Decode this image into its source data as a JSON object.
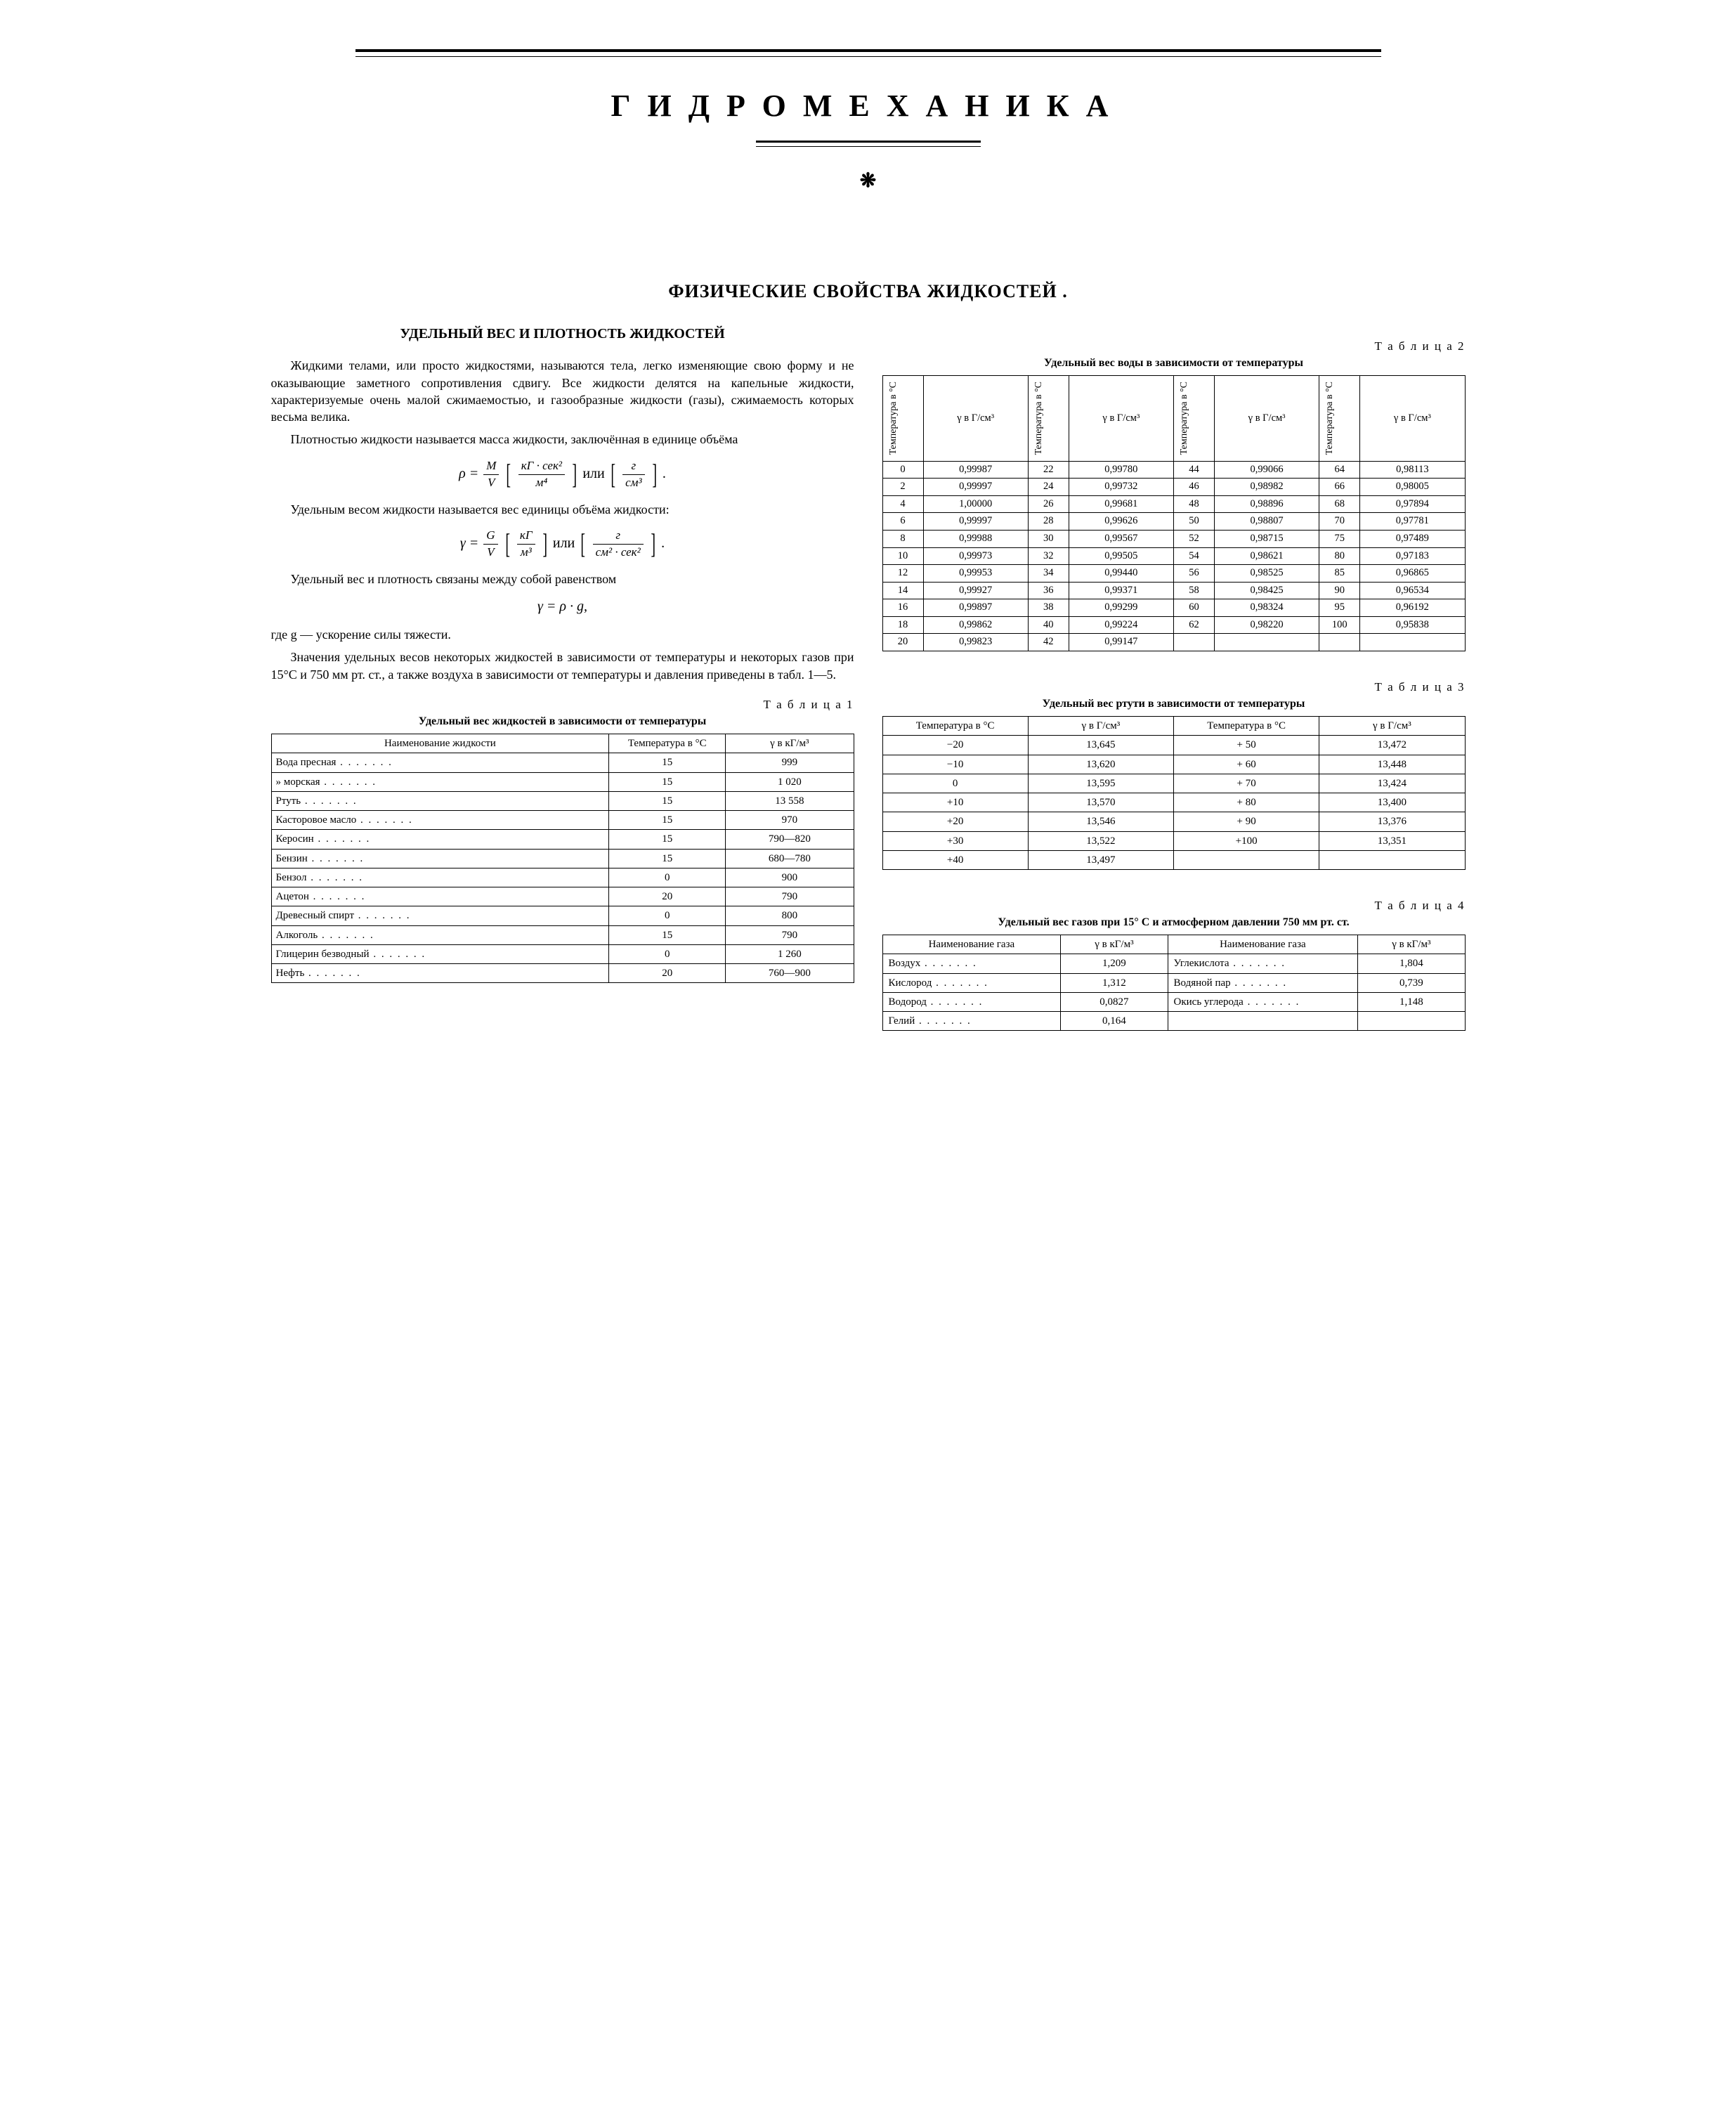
{
  "header": {
    "main_title": "ГИДРОМЕХАНИКА",
    "ornament": "❋"
  },
  "section": {
    "title": "ФИЗИЧЕСКИЕ СВОЙСТВА ЖИДКОСТЕЙ .",
    "subsection_title": "УДЕЛЬНЫЙ ВЕС И ПЛОТНОСТЬ ЖИДКОСТЕЙ"
  },
  "para": {
    "p1": "Жидкими телами, или просто жидкостями, называются тела, легко изменяющие свою форму и не оказывающие заметного сопротивления сдвигу. Все жидкости делятся на капельные жидкости, характеризуемые очень малой сжимаемостью, и газообразные жидкости (газы), сжимаемость которых весьма велика.",
    "p2": "Плотностью жидкости называется масса жидкости, заключённая в единице объёма",
    "p3": "Удельным весом жидкости называется вес единицы объёма жидкости:",
    "p4": "Удельный вес и плотность связаны между собой равенством",
    "p5": "где g — ускорение силы тяжести.",
    "p6": "Значения удельных весов некоторых жидкостей в зависимости от температуры и некоторых газов при 15°С и 750 мм рт. ст., а также воздуха в зависимости от температуры и давления приведены в табл. 1—5."
  },
  "formula": {
    "rho_lhs": "ρ =",
    "rho_num": "M",
    "rho_den": "V",
    "unit1_num": "кГ · сек²",
    "unit1_den": "м⁴",
    "or": " или ",
    "unit2_num": "г",
    "unit2_den": "см³",
    "gamma_lhs": "γ =",
    "gamma_num": "G",
    "gamma_den": "V",
    "unit3_num": "кГ",
    "unit3_den": "м³",
    "unit4_num": "г",
    "unit4_den": "см² · сек²",
    "rel": "γ = ρ · g,",
    "dot": "."
  },
  "table1": {
    "label": "Т а б л и ц а  1",
    "caption": "Удельный вес жидкостей в зависимости от температуры",
    "headers": [
      "Наименование жидкости",
      "Температура в °С",
      "γ в кГ/м³"
    ],
    "rows": [
      [
        "Вода пресная",
        "15",
        "999"
      ],
      [
        "   »    морская",
        "15",
        "1 020"
      ],
      [
        "Ртуть",
        "15",
        "13 558"
      ],
      [
        "Касторовое масло",
        "15",
        "970"
      ],
      [
        "Керосин",
        "15",
        "790—820"
      ],
      [
        "Бензин",
        "15",
        "680—780"
      ],
      [
        "Бензол",
        "0",
        "900"
      ],
      [
        "Ацетон",
        "20",
        "790"
      ],
      [
        "Древесный спирт",
        "0",
        "800"
      ],
      [
        "Алкоголь",
        "15",
        "790"
      ],
      [
        "Глицерин безводный",
        "0",
        "1 260"
      ],
      [
        "Нефть",
        "20",
        "760—900"
      ]
    ]
  },
  "table2": {
    "label": "Т а б л и ц а  2",
    "caption": "Удельный вес воды в зависимости от температуры",
    "col_temp": "Температура в °С",
    "col_gamma": "γ в Г/см³",
    "rows_a": [
      [
        "0",
        "0,99987"
      ],
      [
        "2",
        "0,99997"
      ],
      [
        "4",
        "1,00000"
      ],
      [
        "6",
        "0,99997"
      ],
      [
        "8",
        "0,99988"
      ],
      [
        "10",
        "0,99973"
      ],
      [
        "12",
        "0,99953"
      ],
      [
        "14",
        "0,99927"
      ],
      [
        "16",
        "0,99897"
      ],
      [
        "18",
        "0,99862"
      ],
      [
        "20",
        "0,99823"
      ]
    ],
    "rows_b": [
      [
        "22",
        "0,99780"
      ],
      [
        "24",
        "0,99732"
      ],
      [
        "26",
        "0,99681"
      ],
      [
        "28",
        "0,99626"
      ],
      [
        "30",
        "0,99567"
      ],
      [
        "32",
        "0,99505"
      ],
      [
        "34",
        "0,99440"
      ],
      [
        "36",
        "0,99371"
      ],
      [
        "38",
        "0,99299"
      ],
      [
        "40",
        "0,99224"
      ],
      [
        "42",
        "0,99147"
      ]
    ],
    "rows_c": [
      [
        "44",
        "0,99066"
      ],
      [
        "46",
        "0,98982"
      ],
      [
        "48",
        "0,98896"
      ],
      [
        "50",
        "0,98807"
      ],
      [
        "52",
        "0,98715"
      ],
      [
        "54",
        "0,98621"
      ],
      [
        "56",
        "0,98525"
      ],
      [
        "58",
        "0,98425"
      ],
      [
        "60",
        "0,98324"
      ],
      [
        "62",
        "0,98220"
      ]
    ],
    "rows_d": [
      [
        "64",
        "0,98113"
      ],
      [
        "66",
        "0,98005"
      ],
      [
        "68",
        "0,97894"
      ],
      [
        "70",
        "0,97781"
      ],
      [
        "75",
        "0,97489"
      ],
      [
        "80",
        "0,97183"
      ],
      [
        "85",
        "0,96865"
      ],
      [
        "90",
        "0,96534"
      ],
      [
        "95",
        "0,96192"
      ],
      [
        "100",
        "0,95838"
      ]
    ]
  },
  "table3": {
    "label": "Т а б л и ц а  3",
    "caption": "Удельный вес ртути в зависимости от температуры",
    "headers": [
      "Температура в °С",
      "γ в Г/см³",
      "Температура в °С",
      "γ в Г/см³"
    ],
    "rows_left": [
      [
        "−20",
        "13,645"
      ],
      [
        "−10",
        "13,620"
      ],
      [
        "0",
        "13,595"
      ],
      [
        "+10",
        "13,570"
      ],
      [
        "+20",
        "13,546"
      ],
      [
        "+30",
        "13,522"
      ],
      [
        "+40",
        "13,497"
      ]
    ],
    "rows_right": [
      [
        "+ 50",
        "13,472"
      ],
      [
        "+ 60",
        "13,448"
      ],
      [
        "+ 70",
        "13,424"
      ],
      [
        "+ 80",
        "13,400"
      ],
      [
        "+ 90",
        "13,376"
      ],
      [
        "+100",
        "13,351"
      ]
    ]
  },
  "table4": {
    "label": "Т а б л и ц а  4",
    "caption": "Удельный вес газов при 15° С и атмосферном давлении 750 мм рт. ст.",
    "headers": [
      "Наименование газа",
      "γ в кГ/м³",
      "Наименование газа",
      "γ в кГ/м³"
    ],
    "rows_left": [
      [
        "Воздух",
        "1,209"
      ],
      [
        "Кислород",
        "1,312"
      ],
      [
        "Водород",
        "0,0827"
      ],
      [
        "Гелий",
        "0,164"
      ]
    ],
    "rows_right": [
      [
        "Углекислота",
        "1,804"
      ],
      [
        "Водяной пар",
        "0,739"
      ],
      [
        "Окись углерода",
        "1,148"
      ]
    ]
  }
}
